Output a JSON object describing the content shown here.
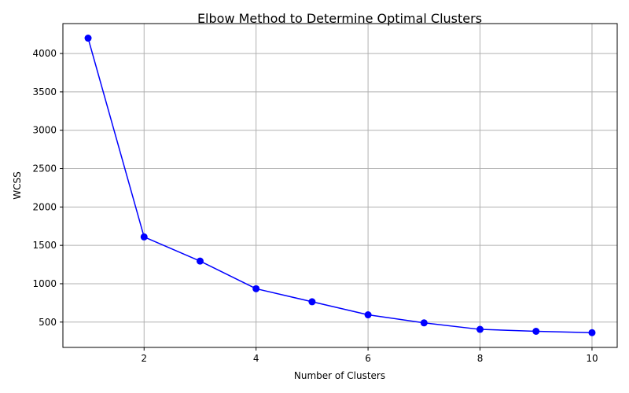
{
  "chart_data": {
    "type": "line",
    "title": "Elbow Method to Determine Optimal Clusters",
    "xlabel": "Number of Clusters",
    "ylabel": "WCSS",
    "x": [
      1,
      2,
      3,
      4,
      5,
      6,
      7,
      8,
      9,
      10
    ],
    "series": [
      {
        "values": [
          4200,
          1610,
          1295,
          935,
          765,
          595,
          490,
          405,
          380,
          362
        ],
        "color": "#0000ff",
        "marker": "circle"
      }
    ],
    "xlim": [
      0.55,
      10.45
    ],
    "ylim": [
      170,
      4390
    ],
    "xticks": [
      2,
      4,
      6,
      8,
      10
    ],
    "yticks": [
      500,
      1000,
      1500,
      2000,
      2500,
      3000,
      3500,
      4000
    ],
    "grid": true,
    "grid_color": "#b0b0b0"
  }
}
